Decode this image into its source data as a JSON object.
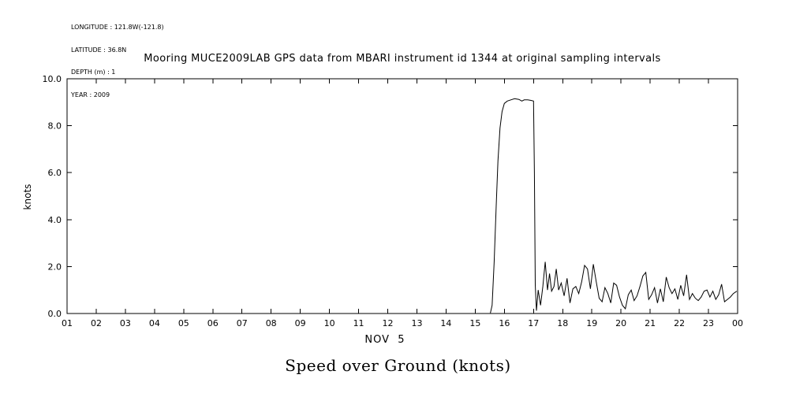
{
  "metadata": {
    "longitude": "LONGITUDE : 121.8W(-121.8)",
    "latitude": "LATITUDE : 36.8N",
    "depth": "DEPTH (m) : 1",
    "year": "YEAR : 2009"
  },
  "bottom_title": "Speed over Ground (knots)",
  "chart_data": {
    "type": "line",
    "title": "Mooring MUCE2009LAB GPS data from MBARI instrument id 1344 at original sampling intervals",
    "xlabel": "NOV  5",
    "ylabel": "knots",
    "xlim": [
      1,
      24
    ],
    "ylim": [
      0,
      10
    ],
    "grid": false,
    "legend": false,
    "line_color": "#000000",
    "background_color": "#ffffff",
    "x_tick_values": [
      1,
      2,
      3,
      4,
      5,
      6,
      7,
      8,
      9,
      10,
      11,
      12,
      13,
      14,
      15,
      16,
      17,
      18,
      19,
      20,
      21,
      22,
      23,
      24
    ],
    "x_tick_labels": [
      "01",
      "02",
      "03",
      "04",
      "05",
      "06",
      "07",
      "08",
      "09",
      "10",
      "11",
      "12",
      "13",
      "14",
      "15",
      "16",
      "17",
      "18",
      "19",
      "20",
      "21",
      "22",
      "23",
      "00"
    ],
    "y_tick_values": [
      0,
      2,
      4,
      6,
      8,
      10
    ],
    "y_tick_labels": [
      "0.0",
      "2.0",
      "4.0",
      "6.0",
      "8.0",
      "10.0"
    ],
    "series": [
      {
        "name": "Speed over Ground (knots)",
        "points": [
          [
            15.52,
            0.02
          ],
          [
            15.58,
            0.35
          ],
          [
            15.65,
            2.2
          ],
          [
            15.72,
            4.6
          ],
          [
            15.78,
            6.5
          ],
          [
            15.85,
            7.9
          ],
          [
            15.92,
            8.6
          ],
          [
            16.0,
            8.95
          ],
          [
            16.1,
            9.05
          ],
          [
            16.22,
            9.1
          ],
          [
            16.35,
            9.15
          ],
          [
            16.5,
            9.12
          ],
          [
            16.6,
            9.05
          ],
          [
            16.68,
            9.1
          ],
          [
            16.8,
            9.1
          ],
          [
            16.9,
            9.08
          ],
          [
            17.0,
            9.05
          ],
          [
            17.03,
            6.0
          ],
          [
            17.06,
            1.2
          ],
          [
            17.1,
            0.12
          ],
          [
            17.16,
            1.0
          ],
          [
            17.24,
            0.35
          ],
          [
            17.32,
            1.15
          ],
          [
            17.4,
            2.2
          ],
          [
            17.48,
            1.0
          ],
          [
            17.55,
            1.7
          ],
          [
            17.62,
            0.95
          ],
          [
            17.7,
            1.15
          ],
          [
            17.78,
            1.9
          ],
          [
            17.86,
            1.0
          ],
          [
            17.95,
            1.3
          ],
          [
            18.05,
            0.75
          ],
          [
            18.15,
            1.5
          ],
          [
            18.25,
            0.45
          ],
          [
            18.35,
            1.05
          ],
          [
            18.45,
            1.15
          ],
          [
            18.55,
            0.85
          ],
          [
            18.65,
            1.35
          ],
          [
            18.75,
            2.05
          ],
          [
            18.85,
            1.9
          ],
          [
            18.95,
            1.05
          ],
          [
            19.05,
            2.1
          ],
          [
            19.15,
            1.35
          ],
          [
            19.25,
            0.65
          ],
          [
            19.35,
            0.5
          ],
          [
            19.45,
            1.1
          ],
          [
            19.55,
            0.85
          ],
          [
            19.65,
            0.45
          ],
          [
            19.75,
            1.3
          ],
          [
            19.85,
            1.2
          ],
          [
            19.95,
            0.7
          ],
          [
            20.05,
            0.35
          ],
          [
            20.15,
            0.2
          ],
          [
            20.25,
            0.8
          ],
          [
            20.35,
            1.0
          ],
          [
            20.45,
            0.55
          ],
          [
            20.55,
            0.75
          ],
          [
            20.65,
            1.15
          ],
          [
            20.75,
            1.6
          ],
          [
            20.85,
            1.75
          ],
          [
            20.95,
            0.6
          ],
          [
            21.05,
            0.8
          ],
          [
            21.15,
            1.1
          ],
          [
            21.25,
            0.45
          ],
          [
            21.35,
            1.05
          ],
          [
            21.45,
            0.5
          ],
          [
            21.55,
            1.55
          ],
          [
            21.65,
            1.1
          ],
          [
            21.75,
            0.85
          ],
          [
            21.85,
            1.05
          ],
          [
            21.95,
            0.6
          ],
          [
            22.05,
            1.2
          ],
          [
            22.15,
            0.75
          ],
          [
            22.25,
            1.65
          ],
          [
            22.35,
            0.6
          ],
          [
            22.45,
            0.85
          ],
          [
            22.55,
            0.65
          ],
          [
            22.65,
            0.55
          ],
          [
            22.75,
            0.7
          ],
          [
            22.85,
            0.95
          ],
          [
            22.95,
            1.0
          ],
          [
            23.05,
            0.7
          ],
          [
            23.15,
            0.95
          ],
          [
            23.25,
            0.6
          ],
          [
            23.35,
            0.8
          ],
          [
            23.45,
            1.25
          ],
          [
            23.55,
            0.5
          ],
          [
            23.65,
            0.6
          ],
          [
            23.75,
            0.7
          ],
          [
            23.85,
            0.85
          ],
          [
            23.97,
            0.95
          ]
        ]
      }
    ]
  }
}
